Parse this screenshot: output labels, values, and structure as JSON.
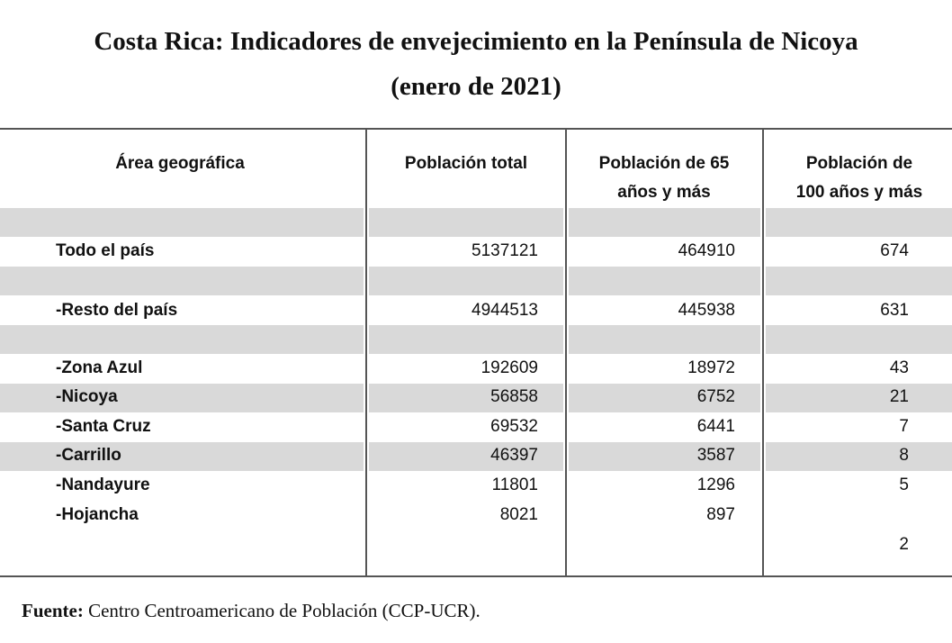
{
  "title": "Costa Rica: Indicadores de envejecimiento en la Península de Nicoya",
  "subtitle": "(enero de 2021)",
  "table": {
    "header": [
      "Área geográfica",
      "Población total",
      "Población de 65 años y más",
      "Población de 100 años y más"
    ],
    "rows": [
      [
        "Todo el país",
        5137121,
        464910,
        674
      ],
      [
        "-Resto del país",
        4944513,
        445938,
        631
      ],
      [
        "-Zona Azul",
        192609,
        18972,
        43
      ],
      [
        "-Nicoya",
        56858,
        6752,
        21
      ],
      [
        "-Santa Cruz",
        69532,
        6441,
        7
      ],
      [
        "-Carrillo",
        46397,
        3587,
        8
      ],
      [
        "-Nandayure",
        11801,
        1296,
        5
      ],
      [
        "-Hojancha",
        8021,
        897,
        2
      ]
    ]
  },
  "source": {
    "label": "Fuente:",
    "text": "Centro Centroamericano de Población (CCP-UCR)."
  }
}
